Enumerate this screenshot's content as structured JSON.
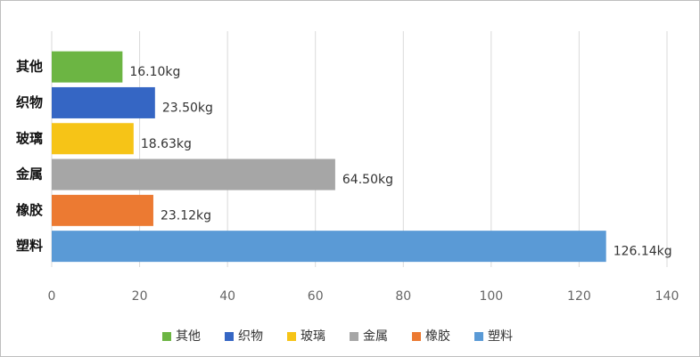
{
  "chart_data": {
    "type": "bar",
    "orientation": "horizontal",
    "categories": [
      "其他",
      "织物",
      "玻璃",
      "金属",
      "橡胶",
      "塑料"
    ],
    "values": [
      16.1,
      23.5,
      18.63,
      64.5,
      23.12,
      126.14
    ],
    "value_labels": [
      "16.10kg",
      "23.50kg",
      "18.63kg",
      "64.50kg",
      "23.12kg",
      "126.14kg"
    ],
    "colors": [
      "#6cb543",
      "#3566c4",
      "#f6c417",
      "#a6a6a6",
      "#ec7a32",
      "#5a9ad6"
    ],
    "xlim": [
      0,
      140
    ],
    "xticks": [
      0,
      20,
      40,
      60,
      80,
      100,
      120,
      140
    ],
    "grid": true,
    "legend": "bottom"
  }
}
